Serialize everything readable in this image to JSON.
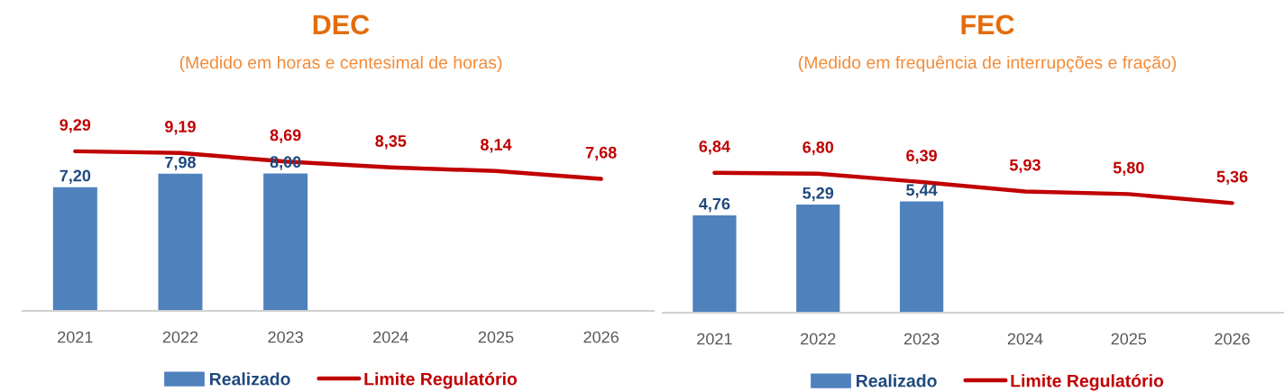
{
  "chart_data": [
    {
      "type": "bar",
      "title": "DEC",
      "subtitle": "(Medido em horas e centesimal de horas)",
      "categories": [
        "2021",
        "2022",
        "2023",
        "2024",
        "2025",
        "2026"
      ],
      "series": [
        {
          "name": "Realizado",
          "color": "#4f81bd",
          "values": [
            7.2,
            7.98,
            8.0,
            null,
            null,
            null
          ],
          "value_labels": [
            "7,20",
            "7,98",
            "8,00",
            null,
            null,
            null
          ]
        },
        {
          "name": "Limite Regulatório",
          "type": "line",
          "color": "#c00000",
          "values": [
            9.29,
            9.19,
            8.69,
            8.35,
            8.14,
            7.68
          ],
          "value_labels": [
            "9,29",
            "9,19",
            "8,69",
            "8,35",
            "8,14",
            "7,68"
          ]
        }
      ],
      "tick_labels": "x",
      "legend": "bottom"
    },
    {
      "type": "bar",
      "title": "FEC",
      "subtitle": "(Medido em frequência de interrupções e fração)",
      "categories": [
        "2021",
        "2022",
        "2023",
        "2024",
        "2025",
        "2026"
      ],
      "series": [
        {
          "name": "Realizado",
          "color": "#4f81bd",
          "values": [
            4.76,
            5.29,
            5.44,
            null,
            null,
            null
          ],
          "value_labels": [
            "4,76",
            "5,29",
            "5,44",
            null,
            null,
            null
          ]
        },
        {
          "name": "Limite Regulatório",
          "type": "line",
          "color": "#c00000",
          "values": [
            6.84,
            6.8,
            6.39,
            5.93,
            5.8,
            5.36
          ],
          "value_labels": [
            "6,84",
            "6,80",
            "6,39",
            "5,93",
            "5,80",
            "5,36"
          ]
        }
      ],
      "tick_labels": "x",
      "legend": "bottom"
    }
  ]
}
